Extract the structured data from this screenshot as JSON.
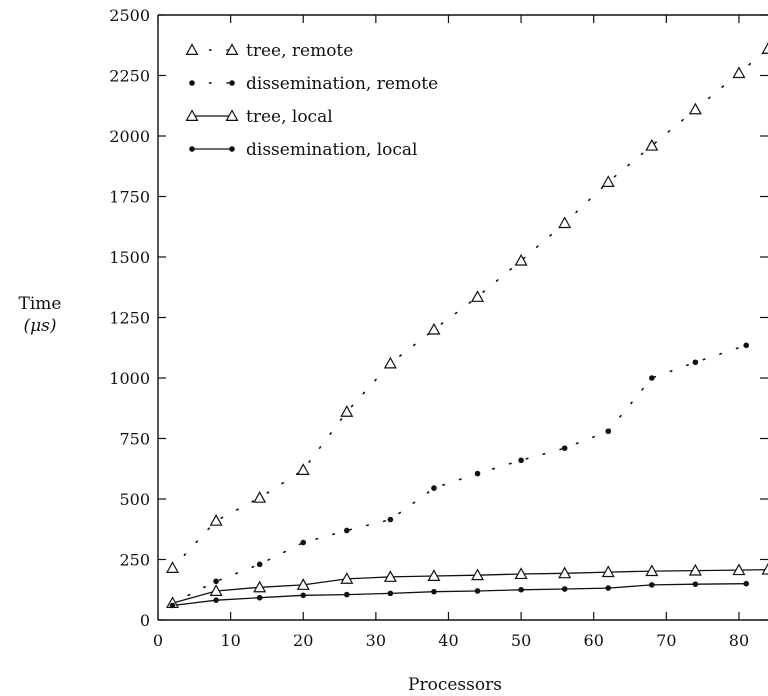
{
  "chart_data": {
    "type": "line",
    "title": "",
    "xlabel": "Processors",
    "ylabel_line1": "Time",
    "ylabel_line2": "(μs)",
    "xlim": [
      0,
      84
    ],
    "ylim": [
      0,
      2500
    ],
    "xticks": [
      0,
      10,
      20,
      30,
      40,
      50,
      60,
      70,
      80
    ],
    "yticks": [
      0,
      250,
      500,
      750,
      1000,
      1250,
      1500,
      1750,
      2000,
      2250,
      2500
    ],
    "grid": false,
    "legend_position": "top-left",
    "series": [
      {
        "name": "tree, remote",
        "marker": "triangle",
        "line": "dotted",
        "x": [
          2,
          8,
          14,
          20,
          26,
          32,
          38,
          44,
          50,
          56,
          62,
          68,
          74,
          80,
          84
        ],
        "y": [
          215,
          410,
          505,
          620,
          860,
          1060,
          1200,
          1335,
          1485,
          1640,
          1810,
          1960,
          2110,
          2260,
          2360
        ]
      },
      {
        "name": "dissemination, remote",
        "marker": "dot",
        "line": "dotted",
        "x": [
          2,
          8,
          14,
          20,
          26,
          32,
          38,
          44,
          50,
          56,
          62,
          68,
          74,
          81
        ],
        "y": [
          70,
          160,
          230,
          320,
          370,
          415,
          545,
          605,
          660,
          710,
          780,
          1000,
          1065,
          1135
        ]
      },
      {
        "name": "tree, local",
        "marker": "triangle",
        "line": "solid",
        "x": [
          2,
          8,
          14,
          20,
          26,
          32,
          38,
          44,
          50,
          56,
          62,
          68,
          74,
          80,
          84
        ],
        "y": [
          70,
          120,
          135,
          145,
          170,
          178,
          182,
          185,
          190,
          193,
          198,
          202,
          204,
          206,
          208
        ]
      },
      {
        "name": "dissemination, local",
        "marker": "dot",
        "line": "solid",
        "x": [
          2,
          8,
          14,
          20,
          26,
          32,
          38,
          44,
          50,
          56,
          62,
          68,
          74,
          81
        ],
        "y": [
          60,
          82,
          92,
          102,
          105,
          110,
          117,
          120,
          125,
          128,
          132,
          145,
          148,
          150
        ]
      }
    ]
  }
}
